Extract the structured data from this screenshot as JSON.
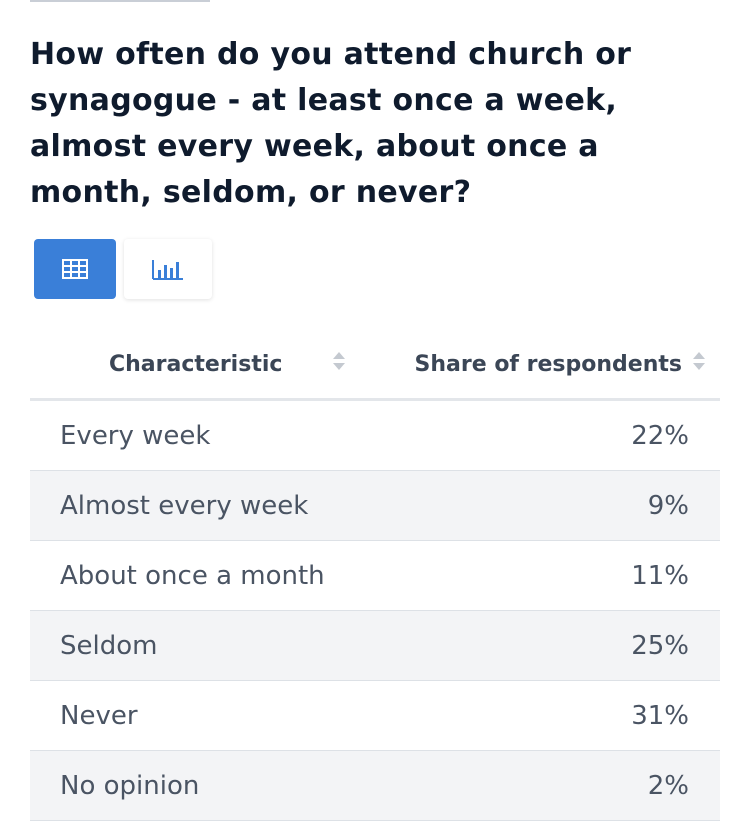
{
  "title": "How often do you attend church or synagogue - at least once a week, almost every week, about once a month, seldom, or never?",
  "view_toggle": {
    "table_icon": "table-icon",
    "chart_icon": "bar-chart-icon",
    "active": "table"
  },
  "colors": {
    "accent": "#3a7fd8",
    "title": "#0f1b2d",
    "stripe": "#f3f4f6"
  },
  "chart_data": {
    "type": "table",
    "columns": [
      "Characteristic",
      "Share of respondents"
    ],
    "rows": [
      {
        "label": "Every week",
        "value": "22%"
      },
      {
        "label": "Almost every week",
        "value": "9%"
      },
      {
        "label": "About once a month",
        "value": "11%"
      },
      {
        "label": "Seldom",
        "value": "25%"
      },
      {
        "label": "Never",
        "value": "31%"
      },
      {
        "label": "No opinion",
        "value": "2%"
      }
    ]
  }
}
